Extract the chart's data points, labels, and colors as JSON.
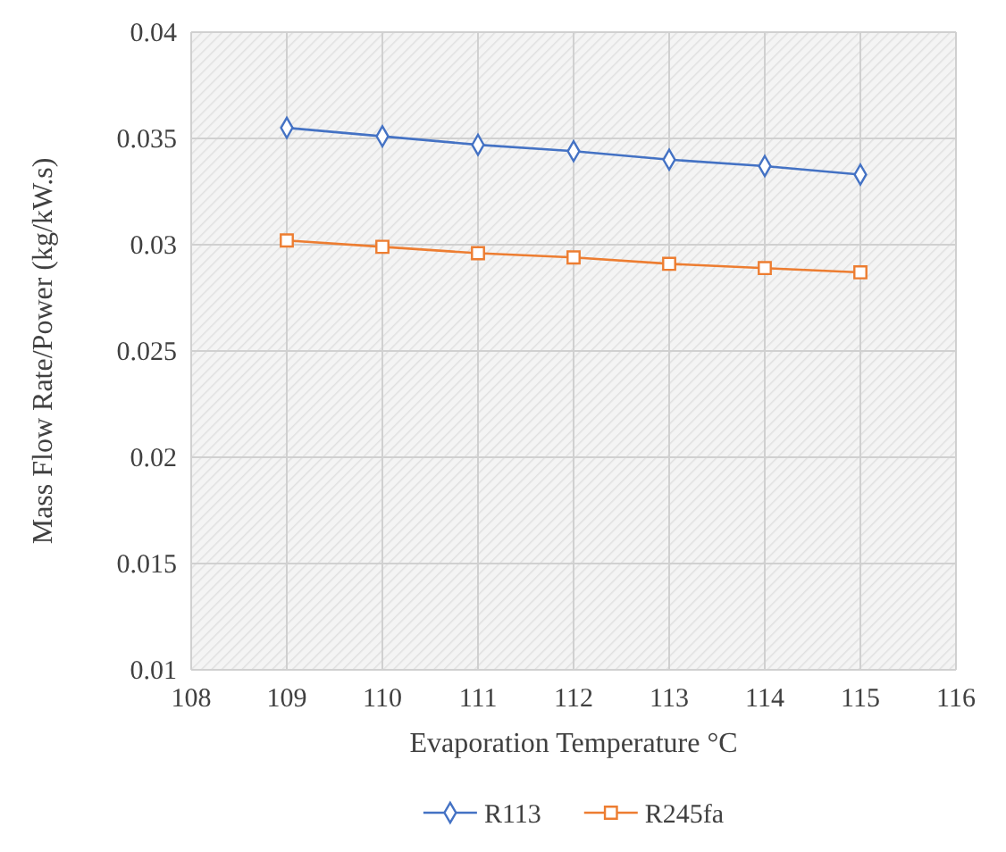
{
  "chart_data": {
    "type": "line",
    "xlabel": "Evaporation Temperature °C",
    "ylabel": "Mass Flow Rate/Power (kg/kW.s)",
    "x": [
      109,
      110,
      111,
      112,
      113,
      114,
      115
    ],
    "series": [
      {
        "name": "R113",
        "color": "#4472c4",
        "marker": "diamond",
        "values": [
          0.0355,
          0.0351,
          0.0347,
          0.0344,
          0.034,
          0.0337,
          0.0333
        ]
      },
      {
        "name": "R245fa",
        "color": "#ed7d31",
        "marker": "square",
        "values": [
          0.0302,
          0.0299,
          0.0296,
          0.0294,
          0.0291,
          0.0289,
          0.0287
        ]
      }
    ],
    "xlim": [
      108,
      116
    ],
    "xticks": [
      108,
      109,
      110,
      111,
      112,
      113,
      114,
      115,
      116
    ],
    "ylim": [
      0.01,
      0.04
    ],
    "yticks": [
      {
        "value": 0.01,
        "label": "0.01"
      },
      {
        "value": 0.015,
        "label": "0.015"
      },
      {
        "value": 0.02,
        "label": "0.02"
      },
      {
        "value": 0.025,
        "label": "0.025"
      },
      {
        "value": 0.03,
        "label": "0.03"
      },
      {
        "value": 0.035,
        "label": "0.035"
      },
      {
        "value": 0.04,
        "label": "0.04"
      }
    ],
    "grid": true,
    "legend": "bottom",
    "line_style": "solid"
  }
}
